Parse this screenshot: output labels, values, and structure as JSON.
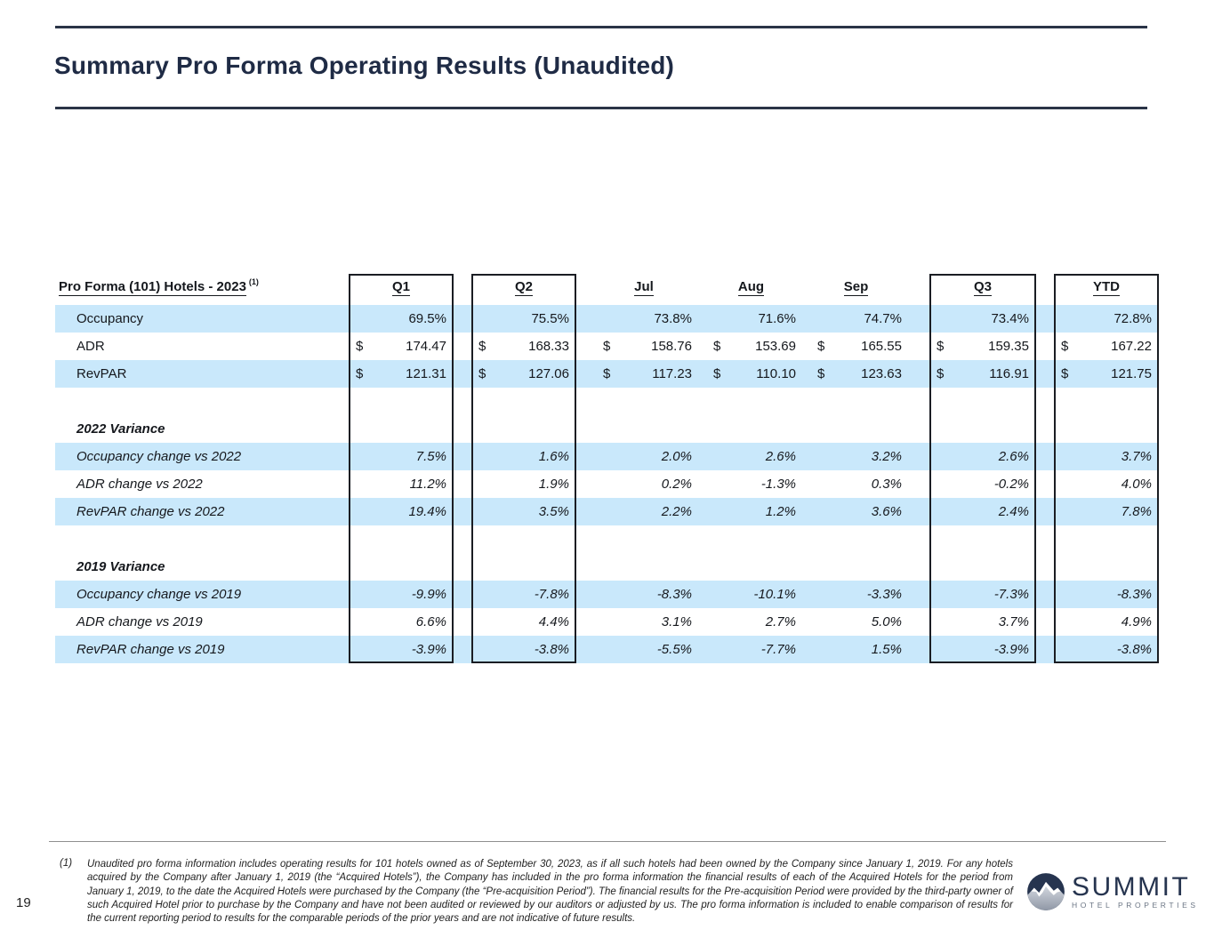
{
  "slide": {
    "title": "Summary Pro Forma Operating Results (Unaudited)",
    "page_number": "19"
  },
  "table": {
    "header": {
      "label": "Pro Forma (101) Hotels - 2023",
      "superscript": "(1)",
      "columns": [
        "Q1",
        "Q2",
        "Jul",
        "Aug",
        "Sep",
        "Q3",
        "YTD"
      ]
    },
    "rows": [
      {
        "kind": "data",
        "label": "Occupancy",
        "shade": true,
        "dollar": false,
        "italic": false,
        "values": [
          "69.5%",
          "75.5%",
          "73.8%",
          "71.6%",
          "74.7%",
          "73.4%",
          "72.8%"
        ]
      },
      {
        "kind": "data",
        "label": "ADR",
        "shade": false,
        "dollar": true,
        "italic": false,
        "values": [
          "174.47",
          "168.33",
          "158.76",
          "153.69",
          "165.55",
          "159.35",
          "167.22"
        ]
      },
      {
        "kind": "data",
        "label": "RevPAR",
        "shade": true,
        "dollar": true,
        "italic": false,
        "values": [
          "121.31",
          "127.06",
          "117.23",
          "110.10",
          "123.63",
          "116.91",
          "121.75"
        ]
      },
      {
        "kind": "spacer"
      },
      {
        "kind": "section",
        "label": "2022 Variance"
      },
      {
        "kind": "data",
        "label": "Occupancy change vs 2022",
        "shade": true,
        "dollar": false,
        "italic": true,
        "values": [
          "7.5%",
          "1.6%",
          "2.0%",
          "2.6%",
          "3.2%",
          "2.6%",
          "3.7%"
        ]
      },
      {
        "kind": "data",
        "label": "ADR change vs 2022",
        "shade": false,
        "dollar": false,
        "italic": true,
        "values": [
          "11.2%",
          "1.9%",
          "0.2%",
          "-1.3%",
          "0.3%",
          "-0.2%",
          "4.0%"
        ]
      },
      {
        "kind": "data",
        "label": "RevPAR change vs 2022",
        "shade": true,
        "dollar": false,
        "italic": true,
        "values": [
          "19.4%",
          "3.5%",
          "2.2%",
          "1.2%",
          "3.6%",
          "2.4%",
          "7.8%"
        ]
      },
      {
        "kind": "spacer"
      },
      {
        "kind": "section",
        "label": "2019 Variance"
      },
      {
        "kind": "data",
        "label": "Occupancy change vs 2019",
        "shade": true,
        "dollar": false,
        "italic": true,
        "values": [
          "-9.9%",
          "-7.8%",
          "-8.3%",
          "-10.1%",
          "-3.3%",
          "-7.3%",
          "-8.3%"
        ]
      },
      {
        "kind": "data",
        "label": "ADR change vs 2019",
        "shade": false,
        "dollar": false,
        "italic": true,
        "values": [
          "6.6%",
          "4.4%",
          "3.1%",
          "2.7%",
          "5.0%",
          "3.7%",
          "4.9%"
        ]
      },
      {
        "kind": "data",
        "label": "RevPAR change vs 2019",
        "shade": true,
        "dollar": false,
        "italic": true,
        "values": [
          "-3.9%",
          "-3.8%",
          "-5.5%",
          "-7.7%",
          "1.5%",
          "-3.9%",
          "-3.8%"
        ]
      }
    ],
    "currency_symbol": "$"
  },
  "footnote": {
    "marker": "(1)",
    "text": "Unaudited pro forma information includes operating results for 101 hotels owned as of September 30, 2023, as if all such hotels had been owned by the Company since January 1, 2019. For any hotels acquired by the Company after January 1, 2019 (the “Acquired Hotels”), the Company has included in the pro forma information the financial results of each of the Acquired Hotels for the period from January 1, 2019, to the date the Acquired Hotels were purchased by the Company (the “Pre-acquisition Period”). The financial results for the Pre-acquisition Period were provided by the third-party owner of such Acquired Hotel prior to purchase by the Company and have not been audited or reviewed by our auditors or adjusted by us. The pro forma information is included to enable comparison of results for the current reporting period to results for the comparable periods of the prior years and are not indicative of future results."
  },
  "logo": {
    "name": "SUMMIT",
    "subtitle": "HOTEL PROPERTIES"
  },
  "colors": {
    "accent_navy": "#1f2b45",
    "row_highlight": "#c9e8fb",
    "table_border": "#1a1d23"
  }
}
